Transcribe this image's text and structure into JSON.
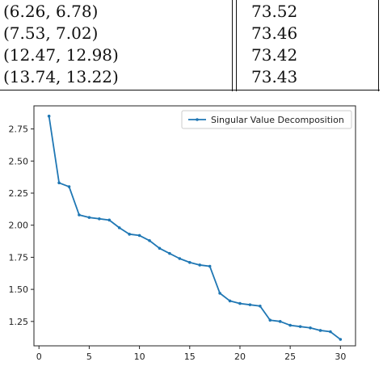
{
  "table": {
    "rows": [
      {
        "pair": "(6.26, 6.78)",
        "value": "73.52"
      },
      {
        "pair": "(7.53, 7.02)",
        "value": "73.46"
      },
      {
        "pair": "(12.47, 12.98)",
        "value": "73.42"
      },
      {
        "pair": "(13.74, 13.22)",
        "value": "73.43"
      }
    ]
  },
  "chart_data": {
    "type": "line",
    "title": "",
    "xlabel": "",
    "ylabel": "",
    "xlim": [
      -0.5,
      31.5
    ],
    "ylim": [
      1.06,
      2.93
    ],
    "xticks": [
      0,
      5,
      10,
      15,
      20,
      25,
      30
    ],
    "yticks": [
      1.25,
      1.5,
      1.75,
      2.0,
      2.25,
      2.5,
      2.75
    ],
    "ytick_labels": [
      "1.25",
      "1.50",
      "1.75",
      "2.00",
      "2.25",
      "2.50",
      "2.75"
    ],
    "grid": false,
    "legend_position": "top-right",
    "series": [
      {
        "name": "Singular Value Decomposition",
        "color": "#1f77b4",
        "marker": "dot",
        "x": [
          1,
          2,
          3,
          4,
          5,
          6,
          7,
          8,
          9,
          10,
          11,
          12,
          13,
          14,
          15,
          16,
          17,
          18,
          19,
          20,
          21,
          22,
          23,
          24,
          25,
          26,
          27,
          28,
          29,
          30
        ],
        "y": [
          2.85,
          2.33,
          2.3,
          2.08,
          2.06,
          2.05,
          2.04,
          1.98,
          1.93,
          1.92,
          1.88,
          1.82,
          1.78,
          1.74,
          1.71,
          1.69,
          1.68,
          1.47,
          1.41,
          1.39,
          1.38,
          1.37,
          1.26,
          1.25,
          1.22,
          1.21,
          1.2,
          1.18,
          1.17,
          1.11
        ]
      }
    ]
  }
}
